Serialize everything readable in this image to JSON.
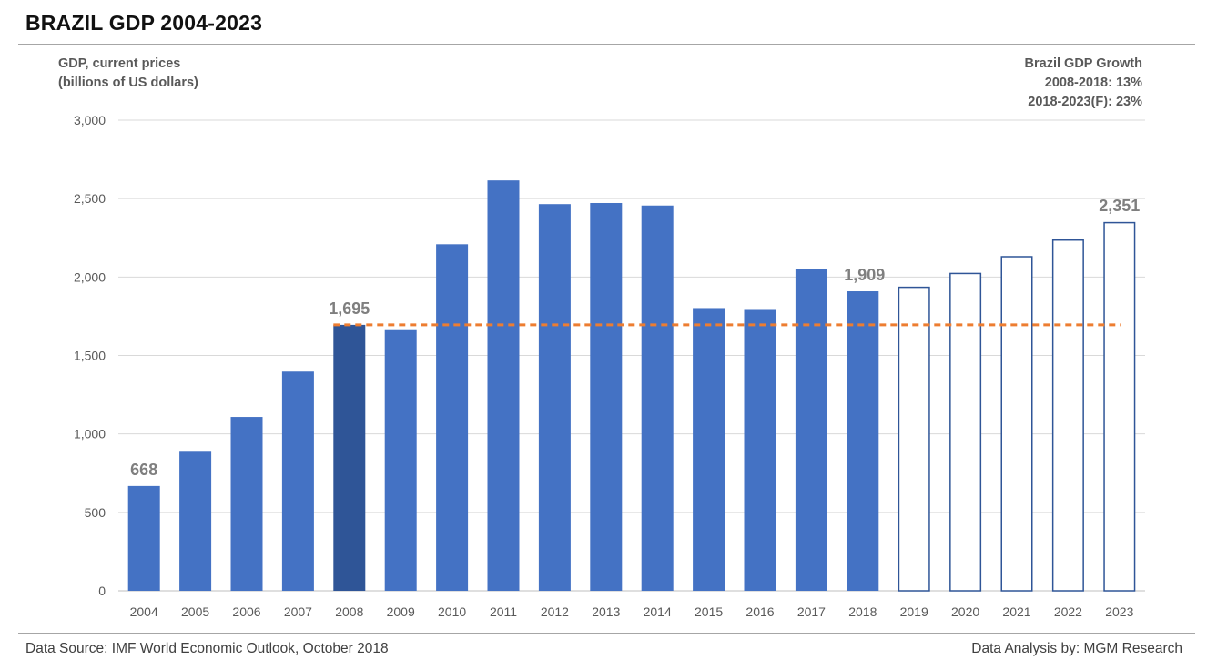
{
  "title": "BRAZIL GDP 2004-2023",
  "ylabel_line1": "GDP, current prices",
  "ylabel_line2": "(billions of US dollars)",
  "note": {
    "line1": "Brazil GDP Growth",
    "line2": "2008-2018: 13%",
    "line3": "2018-2023(F): 23%"
  },
  "footer": {
    "source": "Data Source: IMF World Economic Outlook, October 2018",
    "analysis": "Data Analysis by: MGM Research"
  },
  "colors": {
    "bar": "#4472c4",
    "bar_highlight": "#2f5597",
    "forecast_outline": "#2f5597",
    "reference_line": "#ed7d31",
    "grid": "#d9d9d9",
    "tick_text": "#595959",
    "data_label": "#7f7f7f"
  },
  "chart_data": {
    "type": "bar",
    "categories": [
      "2004",
      "2005",
      "2006",
      "2007",
      "2008",
      "2009",
      "2010",
      "2011",
      "2012",
      "2013",
      "2014",
      "2015",
      "2016",
      "2017",
      "2018",
      "2019",
      "2020",
      "2021",
      "2022",
      "2023"
    ],
    "values": [
      668,
      892,
      1108,
      1397,
      1695,
      1667,
      2209,
      2616,
      2465,
      2472,
      2456,
      1802,
      1796,
      2054,
      1909,
      1939,
      2027,
      2134,
      2240,
      2351
    ],
    "forecast_from": "2019",
    "highlight": "2008",
    "ylim": [
      0,
      3000
    ],
    "yticks": [
      0,
      500,
      1000,
      1500,
      2000,
      2500,
      3000
    ],
    "ytick_labels": [
      "0",
      "500",
      "1,000",
      "1,500",
      "2,000",
      "2,500",
      "3,000"
    ],
    "reference_line": {
      "value": 1695,
      "from": "2008",
      "to": "2023"
    },
    "data_labels": [
      {
        "category": "2004",
        "text": "668"
      },
      {
        "category": "2008",
        "text": "1,695"
      },
      {
        "category": "2018",
        "text": "1,909"
      },
      {
        "category": "2023",
        "text": "2,351"
      }
    ],
    "grid": true,
    "legend": "none"
  }
}
